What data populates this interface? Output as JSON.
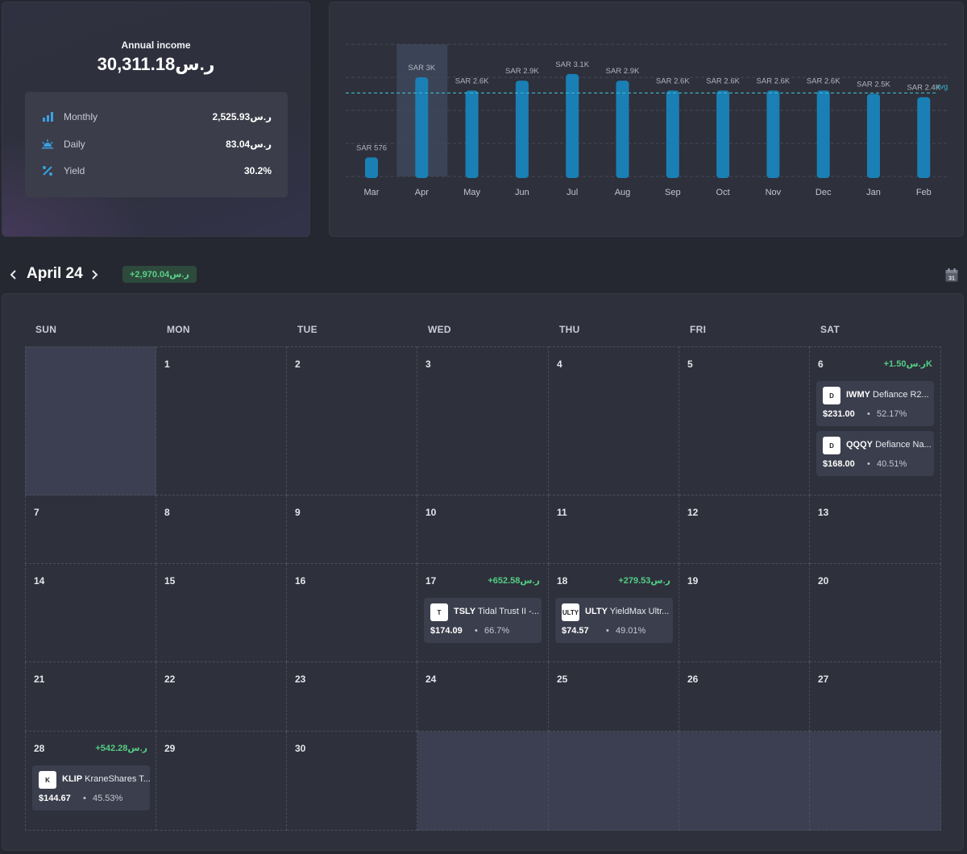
{
  "income": {
    "title": "Annual income",
    "total": "30,311.18ر.س",
    "stats": [
      {
        "icon": "bar-chart-icon",
        "label": "Monthly",
        "value": "2,525.93ر.س"
      },
      {
        "icon": "sunrise-icon",
        "label": "Daily",
        "value": "83.04ر.س"
      },
      {
        "icon": "percent-icon",
        "label": "Yield",
        "value": "30.2%"
      }
    ]
  },
  "chart_data": {
    "type": "bar",
    "title": "",
    "categories": [
      "Mar",
      "Apr",
      "May",
      "Jun",
      "Jul",
      "Aug",
      "Sep",
      "Oct",
      "Nov",
      "Dec",
      "Jan",
      "Feb"
    ],
    "values": [
      576,
      3000,
      2600,
      2900,
      3100,
      2900,
      2600,
      2600,
      2600,
      2600,
      2500,
      2400
    ],
    "data_labels": [
      "SAR 576",
      "SAR 3K",
      "SAR 2.6K",
      "SAR 2.9K",
      "SAR 3.1K",
      "SAR 2.9K",
      "SAR 2.6K",
      "SAR 2.6K",
      "SAR 2.6K",
      "SAR 2.6K",
      "SAR 2.5K",
      "SAR 2.4K"
    ],
    "average": 2526,
    "average_label": "avg",
    "highlighted_category": "Apr",
    "ylim": [
      0,
      4000
    ],
    "grid": true,
    "bar_color": "#1a7fb4",
    "avg_color": "#3fb7c9"
  },
  "calendar": {
    "month_label": "April 24",
    "month_total": "+2,970.04ر.س",
    "weekdays": [
      "SUN",
      "MON",
      "TUE",
      "WED",
      "THU",
      "FRI",
      "SAT"
    ],
    "days": [
      {
        "day": "6",
        "total": "+1.50ر.سK",
        "holdings": [
          {
            "logo": "D",
            "ticker": "IWMY",
            "name": "Defiance R2...",
            "amount": "$231.00",
            "yield": "52.17%"
          },
          {
            "logo": "D",
            "ticker": "QQQY",
            "name": "Defiance Na...",
            "amount": "$168.00",
            "yield": "40.51%"
          }
        ]
      },
      {
        "day": "17",
        "total": "+652.58ر.س",
        "holdings": [
          {
            "logo": "T",
            "ticker": "TSLY",
            "name": "Tidal Trust II -...",
            "amount": "$174.09",
            "yield": "66.7%"
          }
        ]
      },
      {
        "day": "18",
        "total": "+279.53ر.س",
        "holdings": [
          {
            "logo": "ULTY",
            "ticker": "ULTY",
            "name": "YieldMax Ultr...",
            "amount": "$74.57",
            "yield": "49.01%"
          }
        ]
      },
      {
        "day": "28",
        "total": "+542.28ر.س",
        "holdings": [
          {
            "logo": "K",
            "ticker": "KLIP",
            "name": "KraneShares T...",
            "amount": "$144.67",
            "yield": "45.53%"
          }
        ]
      }
    ],
    "dot_separator": "•",
    "calendar_icon_text": "31"
  },
  "colors": {
    "positive": "#53cd84",
    "background": "#262831",
    "card": "#2e303b"
  }
}
